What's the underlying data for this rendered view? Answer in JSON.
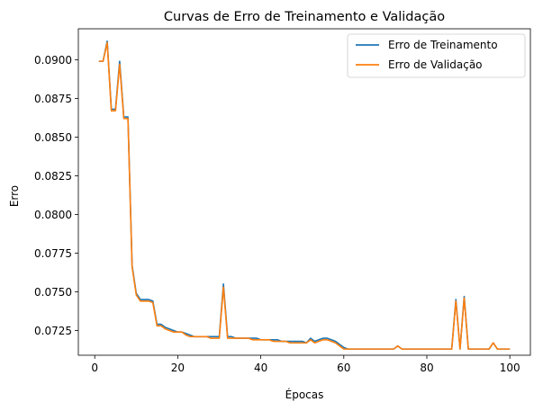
{
  "chart_data": {
    "type": "line",
    "title": "Curvas de Erro de Treinamento e Validação",
    "xlabel": "Épocas",
    "ylabel": "Erro",
    "xlim": [
      -3.95,
      104.95
    ],
    "ylim": [
      0.0709,
      0.092
    ],
    "xticks": [
      0,
      20,
      40,
      60,
      80,
      100
    ],
    "yticks": [
      0.0725,
      0.075,
      0.0775,
      0.08,
      0.0825,
      0.085,
      0.0875,
      0.09
    ],
    "ytick_labels": [
      "0.0725",
      "0.0750",
      "0.0775",
      "0.0800",
      "0.0825",
      "0.0850",
      "0.0875",
      "0.0900"
    ],
    "grid": false,
    "legend": "top-right",
    "x": [
      1,
      2,
      3,
      4,
      5,
      6,
      7,
      8,
      9,
      10,
      11,
      12,
      13,
      14,
      15,
      16,
      17,
      18,
      19,
      20,
      21,
      22,
      23,
      24,
      25,
      26,
      27,
      28,
      29,
      30,
      31,
      32,
      33,
      34,
      35,
      36,
      37,
      38,
      39,
      40,
      41,
      42,
      43,
      44,
      45,
      46,
      47,
      48,
      49,
      50,
      51,
      52,
      53,
      54,
      55,
      56,
      57,
      58,
      59,
      60,
      61,
      62,
      63,
      64,
      65,
      66,
      67,
      68,
      69,
      70,
      71,
      72,
      73,
      74,
      75,
      76,
      77,
      78,
      79,
      80,
      81,
      82,
      83,
      84,
      85,
      86,
      87,
      88,
      89,
      90,
      91,
      92,
      93,
      94,
      95,
      96,
      97,
      98,
      99,
      100
    ],
    "series": [
      {
        "name": "Erro de Treinamento",
        "color": "#1f77b4",
        "values": [
          0.0899,
          0.0899,
          0.0912,
          0.0868,
          0.0868,
          0.0899,
          0.0863,
          0.0863,
          0.0767,
          0.0749,
          0.0745,
          0.0745,
          0.0745,
          0.0744,
          0.0729,
          0.0729,
          0.0727,
          0.0726,
          0.0725,
          0.0724,
          0.0724,
          0.0723,
          0.0722,
          0.0721,
          0.0721,
          0.0721,
          0.0721,
          0.0721,
          0.0721,
          0.0721,
          0.0755,
          0.0721,
          0.0721,
          0.072,
          0.072,
          0.072,
          0.072,
          0.072,
          0.072,
          0.0719,
          0.0719,
          0.0719,
          0.0719,
          0.0719,
          0.0718,
          0.0718,
          0.0718,
          0.0718,
          0.0718,
          0.0718,
          0.0717,
          0.072,
          0.0718,
          0.0719,
          0.072,
          0.072,
          0.0719,
          0.0718,
          0.0716,
          0.0714,
          0.0713,
          0.0713,
          0.0713,
          0.0713,
          0.0713,
          0.0713,
          0.0713,
          0.0713,
          0.0713,
          0.0713,
          0.0713,
          0.0713,
          0.0715,
          0.0713,
          0.0713,
          0.0713,
          0.0713,
          0.0713,
          0.0713,
          0.0713,
          0.0713,
          0.0713,
          0.0713,
          0.0713,
          0.0713,
          0.0713,
          0.0745,
          0.0713,
          0.0747,
          0.0713,
          0.0713,
          0.0713,
          0.0713,
          0.0713,
          0.0713,
          0.0717,
          0.0713,
          0.0713,
          0.0713,
          0.0713
        ]
      },
      {
        "name": "Erro de Validação",
        "color": "#ff7f0e",
        "values": [
          0.0899,
          0.0899,
          0.0911,
          0.0867,
          0.0867,
          0.0897,
          0.0862,
          0.0862,
          0.0766,
          0.0748,
          0.0744,
          0.0744,
          0.0744,
          0.0743,
          0.0728,
          0.0728,
          0.0726,
          0.0725,
          0.0724,
          0.0724,
          0.0724,
          0.0722,
          0.0721,
          0.0721,
          0.0721,
          0.0721,
          0.0721,
          0.072,
          0.072,
          0.072,
          0.0753,
          0.072,
          0.072,
          0.072,
          0.072,
          0.072,
          0.072,
          0.0719,
          0.0719,
          0.0719,
          0.0719,
          0.0719,
          0.0718,
          0.0718,
          0.0718,
          0.0718,
          0.0717,
          0.0717,
          0.0717,
          0.0717,
          0.0717,
          0.0719,
          0.0717,
          0.0718,
          0.0719,
          0.0719,
          0.0718,
          0.0717,
          0.0715,
          0.0713,
          0.0713,
          0.0713,
          0.0713,
          0.0713,
          0.0713,
          0.0713,
          0.0713,
          0.0713,
          0.0713,
          0.0713,
          0.0713,
          0.0713,
          0.0715,
          0.0713,
          0.0713,
          0.0713,
          0.0713,
          0.0713,
          0.0713,
          0.0713,
          0.0713,
          0.0713,
          0.0713,
          0.0713,
          0.0713,
          0.0713,
          0.0744,
          0.0713,
          0.0746,
          0.0713,
          0.0713,
          0.0713,
          0.0713,
          0.0713,
          0.0713,
          0.0717,
          0.0713,
          0.0713,
          0.0713,
          0.0713
        ]
      }
    ]
  }
}
